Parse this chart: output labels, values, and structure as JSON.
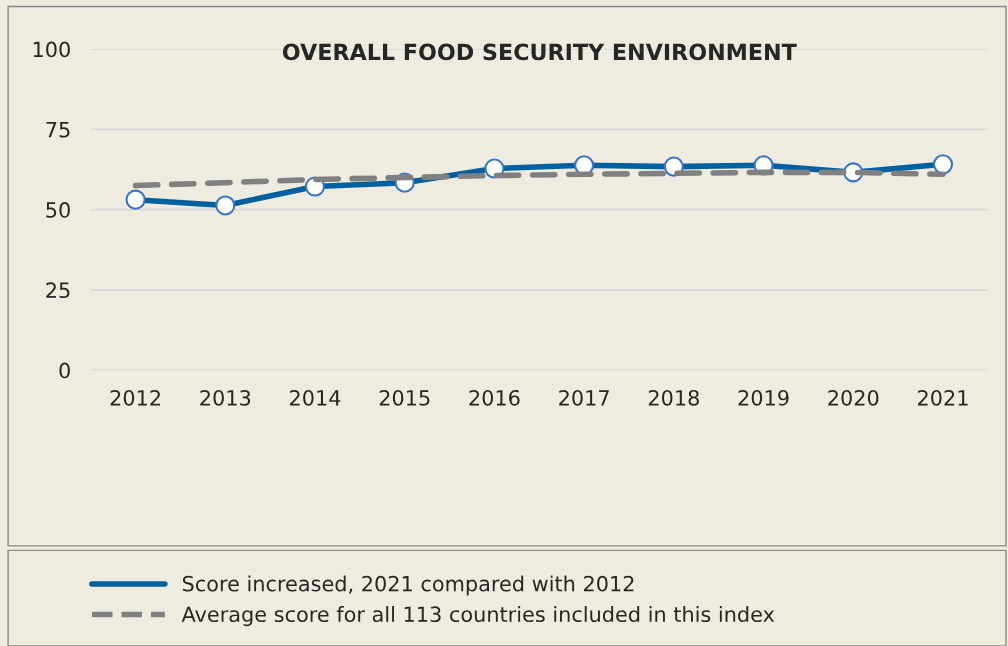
{
  "chart_data": {
    "type": "line",
    "title": "OVERALL FOOD SECURITY ENVIRONMENT",
    "categories": [
      "2012",
      "2013",
      "2014",
      "2015",
      "2016",
      "2017",
      "2018",
      "2019",
      "2020",
      "2021"
    ],
    "series": [
      {
        "name": "Score increased, 2021 compared with 2012",
        "color": "#0060a0",
        "marker": "circle",
        "line_style": "solid",
        "values": [
          53.1,
          51.3,
          57.2,
          58.4,
          62.8,
          63.8,
          63.4,
          63.8,
          61.6,
          64.1
        ]
      },
      {
        "name": "Average score for all 113 countries included in this index",
        "color": "#808080",
        "marker": "none",
        "line_style": "dashed",
        "values": [
          57.5,
          58.4,
          59.4,
          60.0,
          60.6,
          61.0,
          61.3,
          61.6,
          61.6,
          61.0
        ]
      }
    ],
    "ylim": [
      0,
      100
    ],
    "yticks": [
      0,
      25,
      50,
      75,
      100
    ],
    "grid": "y",
    "legend": "bottom"
  }
}
